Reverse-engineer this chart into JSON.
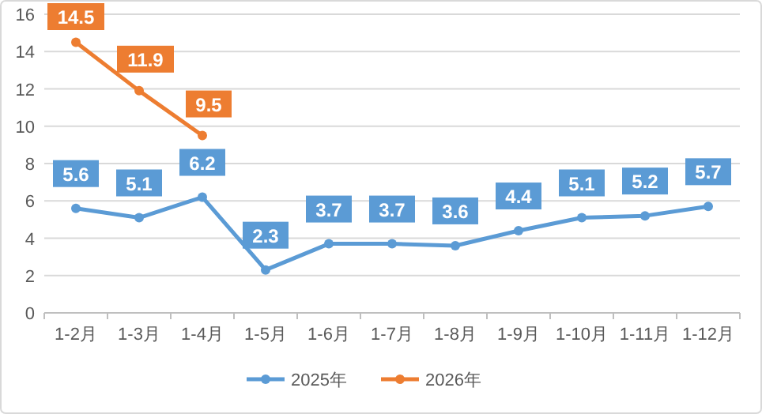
{
  "chart_data": {
    "type": "line",
    "categories": [
      "1-2月",
      "1-3月",
      "1-4月",
      "1-5月",
      "1-6月",
      "1-7月",
      "1-8月",
      "1-9月",
      "1-10月",
      "1-11月",
      "1-12月"
    ],
    "series": [
      {
        "name": "2025年",
        "color": "#5b9bd5",
        "values": [
          5.6,
          5.1,
          6.2,
          2.3,
          3.7,
          3.7,
          3.6,
          4.4,
          5.1,
          5.2,
          5.7
        ]
      },
      {
        "name": "2026年",
        "color": "#ed7d31",
        "values": [
          14.5,
          11.9,
          9.5,
          null,
          null,
          null,
          null,
          null,
          null,
          null,
          null
        ]
      }
    ],
    "ylim": [
      0,
      16
    ],
    "yticks": [
      0,
      2,
      4,
      6,
      8,
      10,
      12,
      14,
      16
    ],
    "grid": "y",
    "legend": "bottom",
    "marker": "circle",
    "line_style": "solid",
    "data_labels": true
  }
}
